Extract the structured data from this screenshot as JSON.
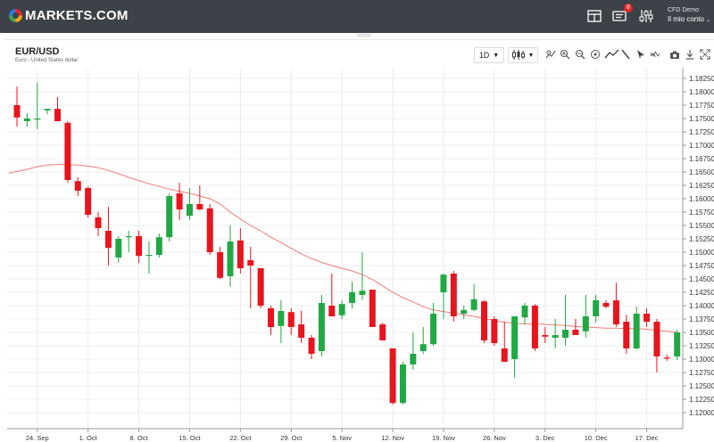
{
  "brand": {
    "name": "MARKETS.COM"
  },
  "header": {
    "notifications_count": "8",
    "account_type": "CFD Demo",
    "account_menu": "Il mio conto"
  },
  "instrument": {
    "symbol": "EUR/USD",
    "description": "Euro - United States dollar"
  },
  "toolbar": {
    "timeframe": "1D",
    "icons": [
      "candlestick-type-icon",
      "indicators-icon",
      "zoom-in-icon",
      "zoom-out-icon",
      "reset-icon",
      "line-tool-icon",
      "pen-tool-icon",
      "cursor-icon",
      "pattern-icon",
      "camera-icon",
      "download-icon",
      "fullscreen-icon"
    ]
  },
  "colors": {
    "up": "#21a844",
    "down": "#e8141e",
    "ma": "#f07a7a",
    "topbar": "#3d4148"
  },
  "chart_data": {
    "type": "candlestick",
    "title": "",
    "xlabel": "",
    "ylabel": "",
    "ylim": [
      1.1185,
      1.1835
    ],
    "x_ticks": [
      {
        "label": "24. Sep",
        "index": 2
      },
      {
        "label": "1. Oct",
        "index": 7
      },
      {
        "label": "8. Oct",
        "index": 12
      },
      {
        "label": "15. Oct",
        "index": 17
      },
      {
        "label": "22. Oct",
        "index": 22
      },
      {
        "label": "29. Oct",
        "index": 27
      },
      {
        "label": "5. Nov",
        "index": 32
      },
      {
        "label": "12. Nov",
        "index": 37
      },
      {
        "label": "19. Nov",
        "index": 42
      },
      {
        "label": "26. Nov",
        "index": 47
      },
      {
        "label": "3. Dec",
        "index": 52
      },
      {
        "label": "10. Dec",
        "index": 57
      },
      {
        "label": "17. Dec",
        "index": 62
      }
    ],
    "y_ticks": [
      "1.18250",
      "1.18000",
      "1.17750",
      "1.17500",
      "1.17250",
      "1.17000",
      "1.16750",
      "1.16500",
      "1.16250",
      "1.16000",
      "1.15750",
      "1.15500",
      "1.15250",
      "1.15000",
      "1.14750",
      "1.14500",
      "1.14250",
      "1.14000",
      "1.13750",
      "1.13500",
      "1.13250",
      "1.13000",
      "1.12750",
      "1.12500",
      "1.12250",
      "1.12000"
    ],
    "series": [
      {
        "type": "ohlc",
        "values": [
          [
            1.1775,
            1.181,
            1.1735,
            1.1752
          ],
          [
            1.1745,
            1.176,
            1.1735,
            1.175
          ],
          [
            1.1748,
            1.1817,
            1.173,
            1.175
          ],
          [
            1.1765,
            1.1768,
            1.1758,
            1.1768
          ],
          [
            1.1768,
            1.179,
            1.1745,
            1.1745
          ],
          [
            1.1742,
            1.1745,
            1.163,
            1.1635
          ],
          [
            1.1633,
            1.164,
            1.1605,
            1.1615
          ],
          [
            1.162,
            1.1623,
            1.1565,
            1.157
          ],
          [
            1.1565,
            1.1575,
            1.153,
            1.1545
          ],
          [
            1.154,
            1.1585,
            1.1475,
            1.1508
          ],
          [
            1.149,
            1.153,
            1.148,
            1.1525
          ],
          [
            1.1528,
            1.154,
            1.15,
            1.153
          ],
          [
            1.153,
            1.154,
            1.148,
            1.1493
          ],
          [
            1.1493,
            1.152,
            1.146,
            1.1495
          ],
          [
            1.1495,
            1.1535,
            1.149,
            1.1528
          ],
          [
            1.1528,
            1.161,
            1.152,
            1.1605
          ],
          [
            1.161,
            1.163,
            1.156,
            1.158
          ],
          [
            1.1568,
            1.162,
            1.156,
            1.159
          ],
          [
            1.159,
            1.1625,
            1.1578,
            1.158
          ],
          [
            1.1582,
            1.159,
            1.1495,
            1.15
          ],
          [
            1.15,
            1.151,
            1.145,
            1.1452
          ],
          [
            1.1455,
            1.155,
            1.1435,
            1.152
          ],
          [
            1.1522,
            1.1545,
            1.146,
            1.147
          ],
          [
            1.1485,
            1.151,
            1.1395,
            1.1475
          ],
          [
            1.147,
            1.147,
            1.1395,
            1.14
          ],
          [
            1.1395,
            1.14,
            1.1345,
            1.136
          ],
          [
            1.1362,
            1.141,
            1.133,
            1.139
          ],
          [
            1.1388,
            1.1395,
            1.1345,
            1.136
          ],
          [
            1.1365,
            1.139,
            1.133,
            1.134
          ],
          [
            1.134,
            1.1345,
            1.13,
            1.131
          ],
          [
            1.1315,
            1.142,
            1.1305,
            1.1405
          ],
          [
            1.14,
            1.146,
            1.138,
            1.138
          ],
          [
            1.1382,
            1.141,
            1.1375,
            1.1403
          ],
          [
            1.1405,
            1.1445,
            1.1395,
            1.1425
          ],
          [
            1.142,
            1.15,
            1.141,
            1.1428
          ],
          [
            1.143,
            1.143,
            1.136,
            1.136
          ],
          [
            1.1365,
            1.1368,
            1.1335,
            1.1335
          ],
          [
            1.132,
            1.132,
            1.1215,
            1.1218
          ],
          [
            1.1218,
            1.1295,
            1.1215,
            1.129
          ],
          [
            1.129,
            1.135,
            1.128,
            1.131
          ],
          [
            1.1315,
            1.136,
            1.131,
            1.1328
          ],
          [
            1.1328,
            1.1405,
            1.1325,
            1.1385
          ],
          [
            1.1425,
            1.146,
            1.1375,
            1.1458
          ],
          [
            1.146,
            1.1465,
            1.137,
            1.138
          ],
          [
            1.1385,
            1.14,
            1.1375,
            1.1392
          ],
          [
            1.1392,
            1.144,
            1.139,
            1.1412
          ],
          [
            1.1408,
            1.141,
            1.133,
            1.1335
          ],
          [
            1.1375,
            1.138,
            1.1325,
            1.133
          ],
          [
            1.132,
            1.137,
            1.1295,
            1.1295
          ],
          [
            1.13,
            1.1375,
            1.1265,
            1.138
          ],
          [
            1.1378,
            1.1405,
            1.1365,
            1.14
          ],
          [
            1.14,
            1.1403,
            1.1315,
            1.132
          ],
          [
            1.1345,
            1.136,
            1.133,
            1.1342
          ],
          [
            1.134,
            1.1375,
            1.132,
            1.1345
          ],
          [
            1.134,
            1.142,
            1.1325,
            1.1355
          ],
          [
            1.1355,
            1.1375,
            1.1345,
            1.1345
          ],
          [
            1.1352,
            1.142,
            1.134,
            1.138
          ],
          [
            1.138,
            1.142,
            1.1368,
            1.141
          ],
          [
            1.1405,
            1.141,
            1.1395,
            1.1398
          ],
          [
            1.141,
            1.1443,
            1.136,
            1.1365
          ],
          [
            1.137,
            1.1383,
            1.131,
            1.132
          ],
          [
            1.132,
            1.1398,
            1.1318,
            1.1385
          ],
          [
            1.1385,
            1.1395,
            1.136,
            1.137
          ],
          [
            1.137,
            1.1375,
            1.1275,
            1.1305
          ],
          [
            1.1303,
            1.1308,
            1.1297,
            1.1302
          ],
          [
            1.1305,
            1.1355,
            1.1298,
            1.135
          ]
        ]
      },
      {
        "type": "line",
        "name": "",
        "values": [
          1.1648,
          1.1655,
          1.166,
          1.1663,
          1.1664,
          1.1664,
          1.1663,
          1.1661,
          1.1658,
          1.1653,
          1.1647,
          1.164,
          1.1634,
          1.1628,
          1.1623,
          1.1618,
          1.1614,
          1.161,
          1.1605,
          1.16,
          1.159,
          1.1575,
          1.1562,
          1.155,
          1.154,
          1.1528,
          1.1518,
          1.1507,
          1.1497,
          1.1488,
          1.1481,
          1.1475,
          1.147,
          1.1465,
          1.1458,
          1.1449,
          1.1437,
          1.1425,
          1.1415,
          1.1407,
          1.1398,
          1.1392,
          1.1389,
          1.1386,
          1.1383,
          1.138,
          1.1376,
          1.1372,
          1.1369,
          1.1367,
          1.1366,
          1.1366,
          1.1365,
          1.1364,
          1.1363,
          1.1361,
          1.136,
          1.1359,
          1.1358,
          1.1358,
          1.1357,
          1.1357,
          1.1356,
          1.1354,
          1.1352,
          1.135
        ]
      }
    ],
    "grid": true
  }
}
